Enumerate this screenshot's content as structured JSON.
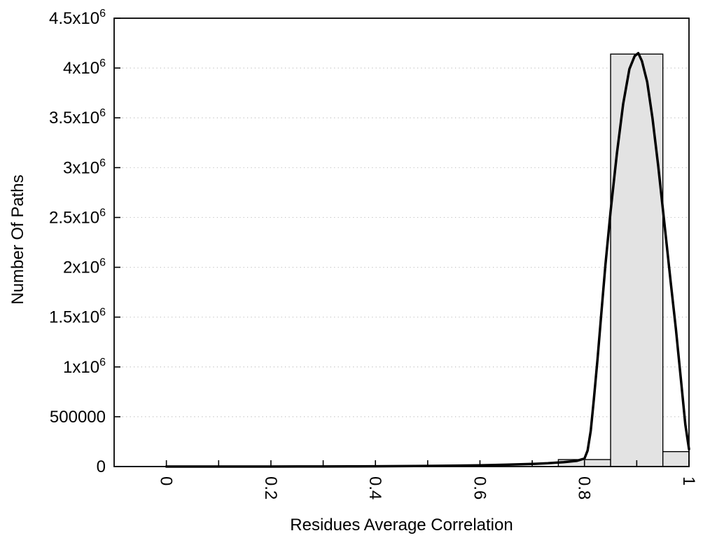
{
  "chart_data": {
    "type": "bar",
    "subtype": "histogram-with-fit-curve",
    "title": "",
    "xlabel": "Residues Average Correlation",
    "ylabel": "Number Of Paths",
    "xlim": [
      -0.1,
      1.0
    ],
    "ylim": [
      0,
      4500000
    ],
    "grid": "horizontal-dotted",
    "legend": "none",
    "bars": [
      {
        "x0": 0.75,
        "x1": 0.85,
        "count": 70000
      },
      {
        "x0": 0.85,
        "x1": 0.95,
        "count": 4140000
      },
      {
        "x0": 0.95,
        "x1": 1.0,
        "count": 150000
      }
    ],
    "xticks": [
      {
        "v": 0.0,
        "t": "0"
      },
      {
        "v": 0.1
      },
      {
        "v": 0.2,
        "t": "0.2"
      },
      {
        "v": 0.3
      },
      {
        "v": 0.4,
        "t": "0.4"
      },
      {
        "v": 0.5
      },
      {
        "v": 0.6,
        "t": "0.6"
      },
      {
        "v": 0.7
      },
      {
        "v": 0.8,
        "t": "0.8"
      },
      {
        "v": 0.9
      },
      {
        "v": 1.0,
        "t": "1"
      }
    ],
    "yticks": [
      {
        "v": 0,
        "t": "0"
      },
      {
        "v": 500000,
        "t": "500000"
      },
      {
        "v": 1000000,
        "t": "1x10",
        "e": "6"
      },
      {
        "v": 1500000,
        "t": "1.5x10",
        "e": "6"
      },
      {
        "v": 2000000,
        "t": "2x10",
        "e": "6"
      },
      {
        "v": 2500000,
        "t": "2.5x10",
        "e": "6"
      },
      {
        "v": 3000000,
        "t": "3x10",
        "e": "6"
      },
      {
        "v": 3500000,
        "t": "3.5x10",
        "e": "6"
      },
      {
        "v": 4000000,
        "t": "4x10",
        "e": "6"
      },
      {
        "v": 4500000,
        "t": "4.5x10",
        "e": "6"
      }
    ],
    "curve": {
      "name": "fit-curve",
      "points": [
        [
          0.0,
          0
        ],
        [
          0.05,
          0
        ],
        [
          0.1,
          0
        ],
        [
          0.15,
          0
        ],
        [
          0.2,
          0
        ],
        [
          0.25,
          500
        ],
        [
          0.3,
          1000
        ],
        [
          0.35,
          1500
        ],
        [
          0.4,
          2500
        ],
        [
          0.45,
          4000
        ],
        [
          0.5,
          6000
        ],
        [
          0.55,
          9000
        ],
        [
          0.6,
          13000
        ],
        [
          0.65,
          18000
        ],
        [
          0.7,
          26000
        ],
        [
          0.73,
          33000
        ],
        [
          0.76,
          44000
        ],
        [
          0.785,
          57000
        ],
        [
          0.8,
          80000
        ],
        [
          0.806,
          160000
        ],
        [
          0.812,
          360000
        ],
        [
          0.818,
          680000
        ],
        [
          0.825,
          1080000
        ],
        [
          0.832,
          1520000
        ],
        [
          0.84,
          2020000
        ],
        [
          0.85,
          2560000
        ],
        [
          0.862,
          3140000
        ],
        [
          0.874,
          3640000
        ],
        [
          0.886,
          3990000
        ],
        [
          0.896,
          4120000
        ],
        [
          0.903,
          4150000
        ],
        [
          0.91,
          4070000
        ],
        [
          0.92,
          3860000
        ],
        [
          0.93,
          3500000
        ],
        [
          0.941,
          3020000
        ],
        [
          0.953,
          2440000
        ],
        [
          0.965,
          1850000
        ],
        [
          0.975,
          1380000
        ],
        [
          0.985,
          850000
        ],
        [
          0.993,
          420000
        ],
        [
          1.0,
          175000
        ]
      ]
    },
    "colors": {
      "background": "#ffffff",
      "bar_fill": "#e3e3e3",
      "bar_border": "#000000",
      "curve": "#000000",
      "grid": "#c0c0c0",
      "axis": "#000000",
      "text": "#000000"
    }
  }
}
